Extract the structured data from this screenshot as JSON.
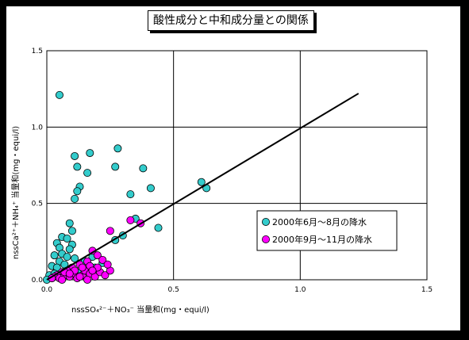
{
  "chart_data": {
    "type": "scatter",
    "title": "酸性成分と中和成分量との関係",
    "xlabel": "nssSO₄²⁻＋NO₃⁻ 当量和(mg・equi/l)",
    "ylabel": "nssCa²⁺＋NH₄⁺ 当量和(mg・equi/l)",
    "xlim": [
      0,
      1.5
    ],
    "ylim": [
      0,
      1.5
    ],
    "x_ticks": [
      "0.0",
      "0.5",
      "1.0",
      "1.5"
    ],
    "y_ticks": [
      "0.0",
      "0.5",
      "1.0",
      "1.5"
    ],
    "grid": true,
    "legend_position": "right-middle",
    "reference_line": {
      "from": [
        0.0,
        0.0
      ],
      "to": [
        1.23,
        1.22
      ],
      "color": "#000000"
    },
    "series": [
      {
        "name": "2000年6月～8月の降水",
        "color": "#33cccc",
        "points": [
          [
            0.05,
            1.21
          ],
          [
            0.28,
            0.86
          ],
          [
            0.11,
            0.81
          ],
          [
            0.17,
            0.83
          ],
          [
            0.12,
            0.74
          ],
          [
            0.16,
            0.7
          ],
          [
            0.27,
            0.74
          ],
          [
            0.38,
            0.73
          ],
          [
            0.13,
            0.61
          ],
          [
            0.12,
            0.58
          ],
          [
            0.11,
            0.53
          ],
          [
            0.33,
            0.56
          ],
          [
            0.41,
            0.6
          ],
          [
            0.61,
            0.64
          ],
          [
            0.63,
            0.6
          ],
          [
            0.09,
            0.37
          ],
          [
            0.1,
            0.32
          ],
          [
            0.35,
            0.4
          ],
          [
            0.44,
            0.34
          ],
          [
            0.3,
            0.29
          ],
          [
            0.27,
            0.26
          ],
          [
            0.06,
            0.28
          ],
          [
            0.08,
            0.27
          ],
          [
            0.04,
            0.24
          ],
          [
            0.05,
            0.21
          ],
          [
            0.1,
            0.23
          ],
          [
            0.09,
            0.2
          ],
          [
            0.03,
            0.16
          ],
          [
            0.06,
            0.17
          ],
          [
            0.08,
            0.15
          ],
          [
            0.11,
            0.14
          ],
          [
            0.15,
            0.12
          ],
          [
            0.05,
            0.12
          ],
          [
            0.02,
            0.09
          ],
          [
            0.04,
            0.08
          ],
          [
            0.07,
            0.1
          ],
          [
            0.09,
            0.07
          ],
          [
            0.13,
            0.05
          ],
          [
            0.01,
            0.03
          ],
          [
            0.03,
            0.04
          ],
          [
            0.05,
            0.02
          ],
          [
            0.08,
            0.03
          ],
          [
            0.02,
            0.01
          ],
          [
            0.06,
            0.01
          ],
          [
            0.0,
            0.0
          ],
          [
            0.19,
            0.08
          ],
          [
            0.22,
            0.11
          ],
          [
            0.18,
            0.15
          ]
        ]
      },
      {
        "name": "2000年9月～11月の降水",
        "color": "#ff00ff",
        "points": [
          [
            0.33,
            0.39
          ],
          [
            0.37,
            0.37
          ],
          [
            0.25,
            0.32
          ],
          [
            0.18,
            0.19
          ],
          [
            0.2,
            0.16
          ],
          [
            0.22,
            0.13
          ],
          [
            0.16,
            0.12
          ],
          [
            0.13,
            0.1
          ],
          [
            0.1,
            0.08
          ],
          [
            0.08,
            0.06
          ],
          [
            0.06,
            0.05
          ],
          [
            0.04,
            0.03
          ],
          [
            0.03,
            0.02
          ],
          [
            0.05,
            0.01
          ],
          [
            0.07,
            0.03
          ],
          [
            0.09,
            0.02
          ],
          [
            0.11,
            0.04
          ],
          [
            0.12,
            0.01
          ],
          [
            0.14,
            0.03
          ],
          [
            0.15,
            0.06
          ],
          [
            0.17,
            0.04
          ],
          [
            0.19,
            0.02
          ],
          [
            0.21,
            0.05
          ],
          [
            0.23,
            0.03
          ],
          [
            0.25,
            0.06
          ],
          [
            0.14,
            0.08
          ],
          [
            0.17,
            0.09
          ],
          [
            0.11,
            0.06
          ],
          [
            0.07,
            0.05
          ],
          [
            0.02,
            0.01
          ],
          [
            0.24,
            0.1
          ],
          [
            0.09,
            0.04
          ],
          [
            0.2,
            0.08
          ],
          [
            0.13,
            0.02
          ],
          [
            0.06,
            0.0
          ],
          [
            0.16,
            0.0
          ],
          [
            0.18,
            0.06
          ]
        ]
      }
    ]
  }
}
